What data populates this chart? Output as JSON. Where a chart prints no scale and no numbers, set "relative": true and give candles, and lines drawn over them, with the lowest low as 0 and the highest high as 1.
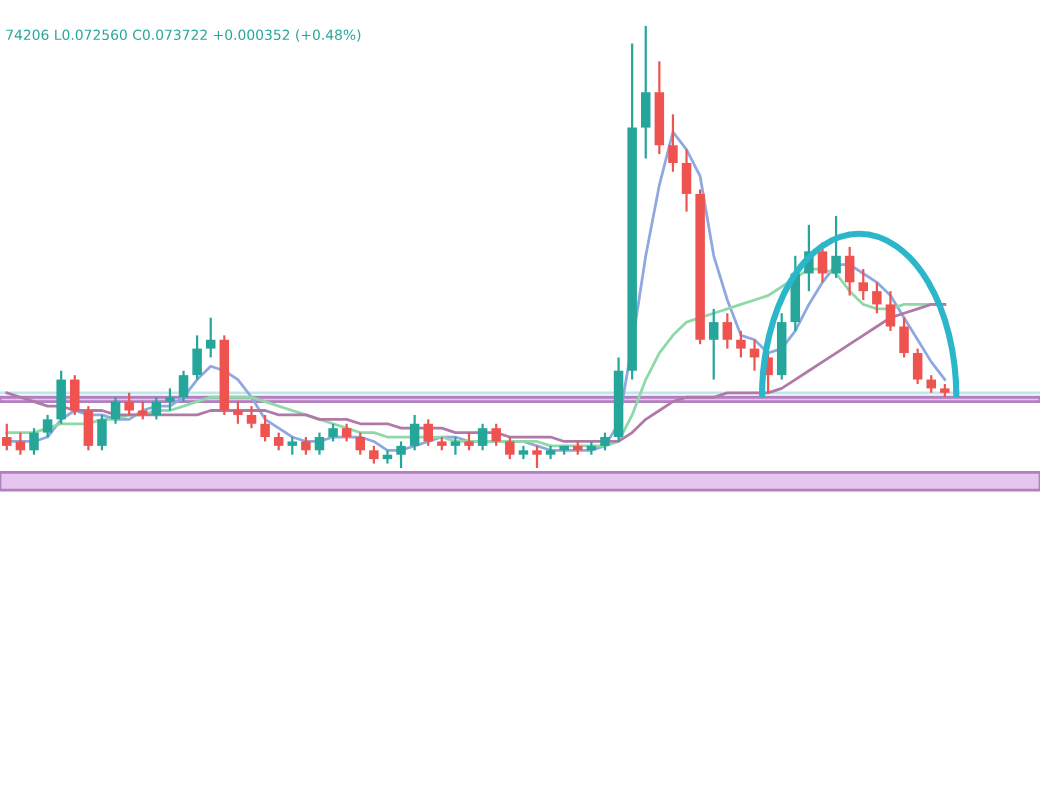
{
  "chart_data": {
    "type": "candlestick",
    "relative": true,
    "annotations": [
      "74206 L0.072560 C0.073722 +0.000352 (+0.48%)"
    ],
    "categories": [
      null,
      null,
      null,
      null,
      null,
      null,
      null,
      null,
      null,
      null,
      null,
      null,
      null,
      null,
      null,
      null,
      null,
      null,
      null,
      null,
      null,
      null,
      null,
      null,
      null,
      null,
      null,
      null,
      null,
      null,
      null,
      null,
      null,
      null,
      null,
      null,
      null,
      null,
      null,
      null,
      null,
      null,
      null,
      null,
      null,
      null,
      null,
      null,
      null,
      null,
      null,
      null,
      null,
      null,
      null,
      null,
      null,
      null,
      null,
      null,
      null,
      null,
      null,
      null,
      null,
      null,
      null,
      null,
      null,
      null
    ],
    "ohlc": [
      [
        0.07,
        0.1,
        0.04,
        0.05
      ],
      [
        0.06,
        0.08,
        0.03,
        0.04
      ],
      [
        0.04,
        0.09,
        0.03,
        0.08
      ],
      [
        0.08,
        0.12,
        0.07,
        0.11
      ],
      [
        0.11,
        0.22,
        0.1,
        0.2
      ],
      [
        0.2,
        0.21,
        0.12,
        0.13
      ],
      [
        0.13,
        0.14,
        0.04,
        0.05
      ],
      [
        0.05,
        0.12,
        0.04,
        0.11
      ],
      [
        0.11,
        0.16,
        0.1,
        0.15
      ],
      [
        0.15,
        0.17,
        0.12,
        0.13
      ],
      [
        0.13,
        0.15,
        0.11,
        0.12
      ],
      [
        0.12,
        0.16,
        0.11,
        0.15
      ],
      [
        0.15,
        0.18,
        0.13,
        0.16
      ],
      [
        0.16,
        0.22,
        0.15,
        0.21
      ],
      [
        0.21,
        0.3,
        0.2,
        0.27
      ],
      [
        0.27,
        0.34,
        0.25,
        0.29
      ],
      [
        0.29,
        0.3,
        0.12,
        0.13
      ],
      [
        0.13,
        0.15,
        0.1,
        0.12
      ],
      [
        0.12,
        0.14,
        0.09,
        0.1
      ],
      [
        0.1,
        0.12,
        0.06,
        0.07
      ],
      [
        0.07,
        0.08,
        0.04,
        0.05
      ],
      [
        0.05,
        0.07,
        0.03,
        0.06
      ],
      [
        0.06,
        0.07,
        0.03,
        0.04
      ],
      [
        0.04,
        0.08,
        0.03,
        0.07
      ],
      [
        0.07,
        0.1,
        0.06,
        0.09
      ],
      [
        0.09,
        0.1,
        0.06,
        0.07
      ],
      [
        0.07,
        0.08,
        0.03,
        0.04
      ],
      [
        0.04,
        0.05,
        0.01,
        0.02
      ],
      [
        0.02,
        0.04,
        0.01,
        0.03
      ],
      [
        0.03,
        0.06,
        0.0,
        0.05
      ],
      [
        0.05,
        0.12,
        0.04,
        0.1
      ],
      [
        0.1,
        0.11,
        0.05,
        0.06
      ],
      [
        0.06,
        0.07,
        0.04,
        0.05
      ],
      [
        0.05,
        0.07,
        0.03,
        0.06
      ],
      [
        0.06,
        0.08,
        0.04,
        0.05
      ],
      [
        0.05,
        0.1,
        0.04,
        0.09
      ],
      [
        0.09,
        0.1,
        0.05,
        0.06
      ],
      [
        0.06,
        0.07,
        0.02,
        0.03
      ],
      [
        0.03,
        0.05,
        0.02,
        0.04
      ],
      [
        0.04,
        0.05,
        0.0,
        0.03
      ],
      [
        0.03,
        0.05,
        0.02,
        0.04
      ],
      [
        0.04,
        0.05,
        0.03,
        0.05
      ],
      [
        0.05,
        0.06,
        0.03,
        0.04
      ],
      [
        0.04,
        0.06,
        0.03,
        0.05
      ],
      [
        0.05,
        0.08,
        0.04,
        0.07
      ],
      [
        0.07,
        0.25,
        0.06,
        0.22
      ],
      [
        0.22,
        0.96,
        0.2,
        0.77
      ],
      [
        0.77,
        1.0,
        0.7,
        0.85
      ],
      [
        0.85,
        0.92,
        0.71,
        0.73
      ],
      [
        0.73,
        0.8,
        0.67,
        0.69
      ],
      [
        0.69,
        0.72,
        0.58,
        0.62
      ],
      [
        0.62,
        0.63,
        0.28,
        0.29
      ],
      [
        0.29,
        0.36,
        0.2,
        0.33
      ],
      [
        0.33,
        0.35,
        0.27,
        0.29
      ],
      [
        0.29,
        0.31,
        0.25,
        0.27
      ],
      [
        0.27,
        0.29,
        0.22,
        0.25
      ],
      [
        0.25,
        0.26,
        0.17,
        0.21
      ],
      [
        0.21,
        0.35,
        0.2,
        0.33
      ],
      [
        0.33,
        0.48,
        0.31,
        0.44
      ],
      [
        0.44,
        0.55,
        0.4,
        0.49
      ],
      [
        0.49,
        0.51,
        0.42,
        0.44
      ],
      [
        0.44,
        0.57,
        0.43,
        0.48
      ],
      [
        0.48,
        0.5,
        0.39,
        0.42
      ],
      [
        0.42,
        0.45,
        0.38,
        0.4
      ],
      [
        0.4,
        0.42,
        0.35,
        0.37
      ],
      [
        0.37,
        0.4,
        0.31,
        0.32
      ],
      [
        0.32,
        0.34,
        0.25,
        0.26
      ],
      [
        0.26,
        0.27,
        0.19,
        0.2
      ],
      [
        0.2,
        0.21,
        0.17,
        0.18
      ],
      [
        0.18,
        0.19,
        0.16,
        0.17
      ]
    ],
    "colors": [
      "#ef5350",
      "#ef5350",
      "#26a69a",
      "#26a69a",
      "#26a69a",
      "#ef5350",
      "#ef5350",
      "#26a69a",
      "#26a69a",
      "#ef5350",
      "#ef5350",
      "#26a69a",
      "#26a69a",
      "#26a69a",
      "#26a69a",
      "#26a69a",
      "#ef5350",
      "#ef5350",
      "#ef5350",
      "#ef5350",
      "#ef5350",
      "#26a69a",
      "#ef5350",
      "#26a69a",
      "#26a69a",
      "#ef5350",
      "#ef5350",
      "#ef5350",
      "#26a69a",
      "#26a69a",
      "#26a69a",
      "#ef5350",
      "#ef5350",
      "#26a69a",
      "#ef5350",
      "#26a69a",
      "#ef5350",
      "#ef5350",
      "#26a69a",
      "#ef5350",
      "#26a69a",
      "#26a69a",
      "#ef5350",
      "#26a69a",
      "#26a69a",
      "#26a69a",
      "#26a69a",
      "#26a69a",
      "#ef5350",
      "#ef5350",
      "#ef5350",
      "#ef5350",
      "#26a69a",
      "#ef5350",
      "#ef5350",
      "#ef5350",
      "#ef5350",
      "#26a69a",
      "#26a69a",
      "#26a69a",
      "#ef5350",
      "#26a69a",
      "#ef5350",
      "#ef5350",
      "#ef5350",
      "#ef5350",
      "#ef5350",
      "#ef5350",
      "#ef5350",
      "#ef5350"
    ],
    "series": [
      {
        "type": "line",
        "color": "#8fa8e0",
        "values": [
          0.06,
          0.06,
          0.06,
          0.07,
          0.11,
          0.13,
          0.12,
          0.12,
          0.11,
          0.11,
          0.13,
          0.14,
          0.14,
          0.16,
          0.2,
          0.23,
          0.22,
          0.2,
          0.16,
          0.11,
          0.09,
          0.07,
          0.06,
          0.06,
          0.07,
          0.07,
          0.07,
          0.06,
          0.04,
          0.04,
          0.05,
          0.06,
          0.07,
          0.07,
          0.06,
          0.06,
          0.06,
          0.06,
          0.06,
          0.05,
          0.04,
          0.04,
          0.04,
          0.04,
          0.05,
          0.1,
          0.28,
          0.48,
          0.64,
          0.76,
          0.72,
          0.66,
          0.48,
          0.38,
          0.3,
          0.29,
          0.26,
          0.27,
          0.31,
          0.37,
          0.42,
          0.46,
          0.46,
          0.44,
          0.42,
          0.39,
          0.34,
          0.29,
          0.24,
          0.2
        ]
      },
      {
        "type": "line",
        "color": "#8fd9a8",
        "values": [
          0.08,
          0.08,
          0.08,
          0.09,
          0.1,
          0.1,
          0.1,
          0.11,
          0.11,
          0.12,
          0.12,
          0.13,
          0.13,
          0.14,
          0.15,
          0.16,
          0.16,
          0.16,
          0.16,
          0.15,
          0.14,
          0.13,
          0.12,
          0.11,
          0.1,
          0.09,
          0.08,
          0.08,
          0.07,
          0.07,
          0.07,
          0.07,
          0.07,
          0.06,
          0.06,
          0.06,
          0.06,
          0.06,
          0.06,
          0.06,
          0.05,
          0.05,
          0.05,
          0.05,
          0.05,
          0.06,
          0.12,
          0.2,
          0.26,
          0.3,
          0.33,
          0.34,
          0.35,
          0.36,
          0.37,
          0.38,
          0.39,
          0.41,
          0.43,
          0.45,
          0.45,
          0.44,
          0.4,
          0.37,
          0.36,
          0.36,
          0.37,
          0.37,
          0.37,
          0.37
        ]
      },
      {
        "type": "line",
        "color": "#b07aa8",
        "values": [
          0.17,
          0.16,
          0.15,
          0.14,
          0.14,
          0.13,
          0.13,
          0.13,
          0.12,
          0.12,
          0.12,
          0.12,
          0.12,
          0.12,
          0.12,
          0.13,
          0.13,
          0.13,
          0.13,
          0.13,
          0.12,
          0.12,
          0.12,
          0.11,
          0.11,
          0.11,
          0.1,
          0.1,
          0.1,
          0.09,
          0.09,
          0.09,
          0.09,
          0.08,
          0.08,
          0.08,
          0.08,
          0.07,
          0.07,
          0.07,
          0.07,
          0.06,
          0.06,
          0.06,
          0.06,
          0.06,
          0.08,
          0.11,
          0.13,
          0.15,
          0.16,
          0.16,
          0.16,
          0.17,
          0.17,
          0.17,
          0.17,
          0.18,
          0.2,
          0.22,
          0.24,
          0.26,
          0.28,
          0.3,
          0.32,
          0.34,
          0.35,
          0.36,
          0.37,
          0.37
        ]
      }
    ],
    "ref_lines": [
      {
        "axis": "y",
        "value": 0.17,
        "color": "#bfe6ea"
      }
    ],
    "bands": [
      {
        "axis": "y",
        "from": 0.15,
        "to": 0.16,
        "color": "#e6c6ee"
      },
      {
        "axis": "y",
        "from": -0.05,
        "to": -0.01,
        "color": "#e6c6ee"
      }
    ]
  }
}
